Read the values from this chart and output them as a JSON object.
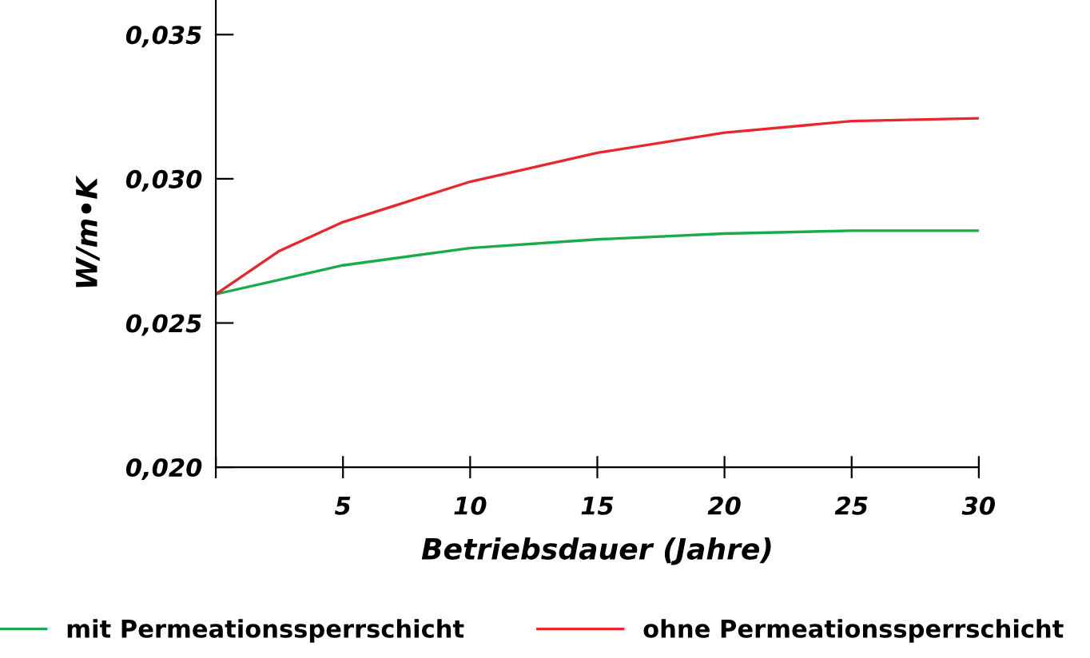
{
  "chart_data": {
    "type": "line",
    "xlabel": "Betriebsdauer (Jahre)",
    "ylabel": "W/m•K",
    "xlim": [
      0,
      30
    ],
    "xticks": [
      {
        "value": 0,
        "label": null
      },
      5,
      10,
      15,
      20,
      25,
      30
    ],
    "ylim": [
      0.02,
      0.0362
    ],
    "yticks": [
      {
        "value": 0.02,
        "label": "0,020"
      },
      {
        "value": 0.025,
        "label": "0,025"
      },
      {
        "value": 0.03,
        "label": "0,030"
      },
      {
        "value": 0.035,
        "label": "0,035"
      }
    ],
    "grid": false,
    "legend": "bottom",
    "marker": "none",
    "line_style": "solid",
    "series": [
      {
        "name": "mit Permeationssperrschicht",
        "color": "#1aab4b",
        "x": [
          0,
          2.5,
          5,
          10,
          15,
          20,
          25,
          30
        ],
        "values": [
          0.026,
          0.0265,
          0.027,
          0.0276,
          0.0279,
          0.0281,
          0.0282,
          0.0282
        ]
      },
      {
        "name": "ohne Permeationssperrschicht",
        "color": "#e8262d",
        "x": [
          0,
          2.5,
          5,
          10,
          15,
          20,
          25,
          30
        ],
        "values": [
          0.026,
          0.0275,
          0.0285,
          0.0299,
          0.0309,
          0.0316,
          0.032,
          0.0321
        ]
      }
    ]
  }
}
